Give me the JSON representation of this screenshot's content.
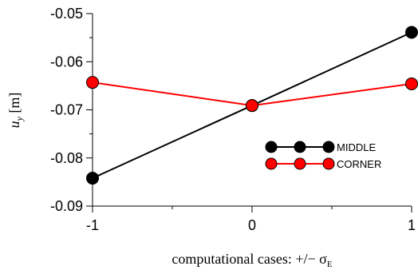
{
  "chart_data": {
    "type": "line",
    "title": "",
    "xlabel": "computational cases: +/− σ",
    "xlabel_subscript": "E",
    "ylabel": "u",
    "ylabel_subscript": "y",
    "ylabel_unit": " [m]",
    "x": [
      -1,
      0,
      1
    ],
    "x_tick_labels": [
      "-1",
      "0",
      "1"
    ],
    "xlim": [
      -1,
      1
    ],
    "ylim": [
      -0.09,
      -0.05
    ],
    "y_ticks": [
      -0.09,
      -0.08,
      -0.07,
      -0.06,
      -0.05
    ],
    "y_tick_labels": [
      "-0.09",
      "-0.08",
      "-0.07",
      "-0.06",
      "-0.05"
    ],
    "grid": false,
    "legend_position": "center-right",
    "series": [
      {
        "name": "MIDDLE",
        "color": "#000000",
        "marker_fill": "#000000",
        "values": [
          -0.0842,
          -0.0691,
          -0.0539
        ]
      },
      {
        "name": "CORNER",
        "color": "#ff0000",
        "marker_fill": "#ff0000",
        "values": [
          -0.0643,
          -0.0691,
          -0.0646
        ]
      }
    ]
  }
}
